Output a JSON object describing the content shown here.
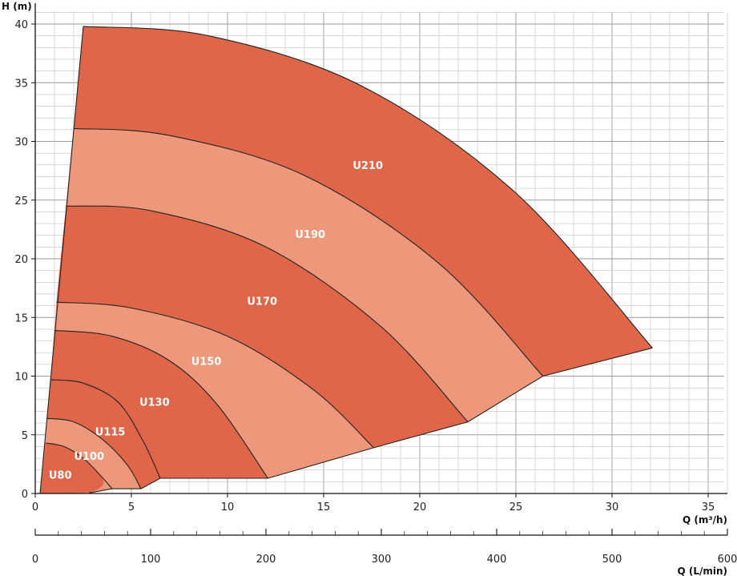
{
  "chart_data": {
    "type": "area",
    "title": "",
    "xlabel": "Q (m³/h)",
    "ylabel": "H (m)",
    "x2label": "Q (L/min)",
    "xlim": [
      0,
      36
    ],
    "ylim": [
      0,
      41
    ],
    "x2lim": [
      0,
      600
    ],
    "xticks": [
      0,
      5,
      10,
      15,
      20,
      25,
      30,
      35
    ],
    "yticks": [
      0,
      5,
      10,
      15,
      20,
      25,
      30,
      35,
      40
    ],
    "x2ticks": [
      0,
      100,
      200,
      300,
      400,
      500,
      600
    ],
    "grid": true,
    "colors": {
      "dark": "#e0664a",
      "light": "#ed987b",
      "grid": "#c2c2c2",
      "outline": "#222222"
    },
    "series": [
      {
        "name": "U80",
        "shade": "dark",
        "label_at": [
          1.3,
          1.6
        ],
        "top": [
          [
            0.55,
            4.3
          ],
          [
            1.5,
            4.0
          ],
          [
            2.5,
            3.0
          ],
          [
            3.3,
            1.7
          ],
          [
            4.0,
            0.4
          ]
        ],
        "bottom": [
          [
            2.8,
            0.05
          ],
          [
            4.0,
            0.4
          ]
        ],
        "upper_arc": []
      },
      {
        "name": "U100",
        "shade": "light",
        "label_at": [
          2.8,
          3.2
        ],
        "top": [
          [
            0.6,
            6.4
          ],
          [
            2.0,
            6.1
          ],
          [
            3.5,
            4.6
          ],
          [
            4.8,
            2.4
          ],
          [
            5.5,
            0.4
          ]
        ],
        "bottom": [
          [
            2.8,
            0.05
          ],
          [
            4.0,
            0.4
          ],
          [
            5.5,
            0.4
          ]
        ],
        "upper_arc": [
          [
            0.55,
            4.3
          ],
          [
            1.5,
            4.0
          ],
          [
            2.5,
            3.0
          ],
          [
            3.3,
            1.7
          ],
          [
            4.0,
            0.4
          ]
        ]
      },
      {
        "name": "U115",
        "shade": "dark",
        "label_at": [
          3.9,
          5.3
        ],
        "top": [
          [
            0.8,
            9.7
          ],
          [
            2.5,
            9.4
          ],
          [
            4.3,
            7.8
          ],
          [
            5.6,
            4.5
          ],
          [
            6.5,
            1.3
          ]
        ],
        "bottom": [
          [
            5.5,
            0.4
          ],
          [
            6.5,
            1.3
          ]
        ],
        "upper_arc": [
          [
            0.6,
            6.4
          ],
          [
            2.0,
            6.1
          ],
          [
            3.5,
            4.6
          ],
          [
            4.8,
            2.4
          ],
          [
            5.5,
            0.4
          ]
        ]
      },
      {
        "name": "U130",
        "shade": "dark",
        "label_at": [
          6.2,
          7.8
        ],
        "top": [
          [
            1.0,
            13.9
          ],
          [
            4.0,
            13.4
          ],
          [
            7.0,
            11.3
          ],
          [
            9.5,
            7.5
          ],
          [
            12.1,
            1.3
          ]
        ],
        "bottom": [
          [
            6.5,
            1.3
          ],
          [
            12.1,
            1.3
          ]
        ],
        "upper_arc": [
          [
            0.8,
            9.7
          ],
          [
            2.5,
            9.4
          ],
          [
            4.3,
            7.8
          ],
          [
            5.6,
            4.5
          ],
          [
            6.5,
            1.3
          ]
        ]
      },
      {
        "name": "U150",
        "shade": "light",
        "label_at": [
          8.9,
          11.3
        ],
        "top": [
          [
            1.1,
            16.3
          ],
          [
            5.0,
            15.8
          ],
          [
            10.0,
            13.4
          ],
          [
            14.5,
            8.8
          ],
          [
            17.6,
            3.9
          ]
        ],
        "bottom": [
          [
            12.1,
            1.3
          ],
          [
            17.6,
            3.9
          ]
        ],
        "upper_arc": [
          [
            1.0,
            13.9
          ],
          [
            4.0,
            13.4
          ],
          [
            7.0,
            11.3
          ],
          [
            9.5,
            7.5
          ],
          [
            12.1,
            1.3
          ]
        ]
      },
      {
        "name": "U170",
        "shade": "dark",
        "label_at": [
          11.8,
          16.4
        ],
        "top": [
          [
            1.6,
            24.5
          ],
          [
            6.0,
            24.1
          ],
          [
            12.0,
            21.0
          ],
          [
            18.0,
            14.2
          ],
          [
            22.5,
            6.1
          ]
        ],
        "bottom": [
          [
            17.6,
            3.9
          ],
          [
            22.5,
            6.1
          ]
        ],
        "upper_arc": [
          [
            1.1,
            16.3
          ],
          [
            5.0,
            15.8
          ],
          [
            10.0,
            13.4
          ],
          [
            14.5,
            8.8
          ],
          [
            17.6,
            3.9
          ]
        ]
      },
      {
        "name": "U190",
        "shade": "light",
        "label_at": [
          14.3,
          22.1
        ],
        "top": [
          [
            2.0,
            31.1
          ],
          [
            7.0,
            30.5
          ],
          [
            14.0,
            27.1
          ],
          [
            21.0,
            19.6
          ],
          [
            26.4,
            10.0
          ]
        ],
        "bottom": [
          [
            22.5,
            6.1
          ],
          [
            26.4,
            10.0
          ]
        ],
        "upper_arc": [
          [
            1.6,
            24.5
          ],
          [
            6.0,
            24.1
          ],
          [
            12.0,
            21.0
          ],
          [
            18.0,
            14.2
          ],
          [
            22.5,
            6.1
          ]
        ]
      },
      {
        "name": "U210",
        "shade": "dark",
        "label_at": [
          17.3,
          28.0
        ],
        "top": [
          [
            2.5,
            39.8
          ],
          [
            9.0,
            39.0
          ],
          [
            17.0,
            34.7
          ],
          [
            25.0,
            25.6
          ],
          [
            32.1,
            12.4
          ]
        ],
        "bottom": [
          [
            26.4,
            10.0
          ],
          [
            32.1,
            12.4
          ]
        ],
        "upper_arc": [
          [
            2.0,
            31.1
          ],
          [
            7.0,
            30.5
          ],
          [
            14.0,
            27.1
          ],
          [
            21.0,
            19.6
          ],
          [
            26.4,
            10.0
          ]
        ]
      }
    ]
  }
}
